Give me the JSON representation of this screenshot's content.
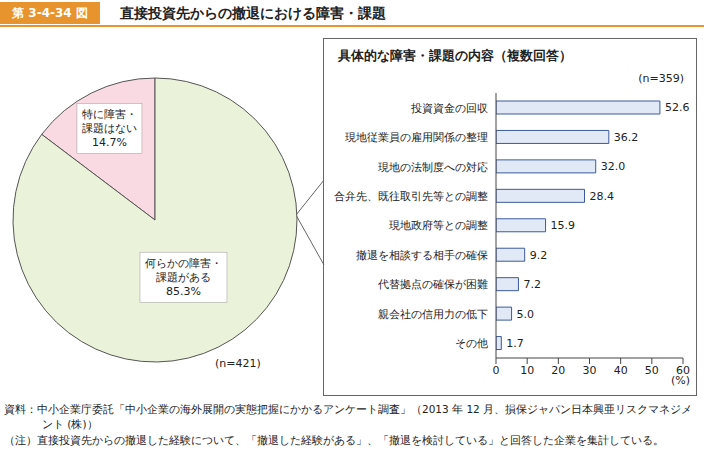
{
  "figure_number": "第 3-4-34 図",
  "title": "直接投資先からの撤退における障害・課題",
  "source": "資料：中小企業庁委託「中小企業の海外展開の実態把握にかかるアンケート調査」（2013 年 12 月、損保ジャパン日本興亜リスクマネジメント (株)）",
  "note": "（注）直接投資先からの撤退した経験について、「撤退した経験がある」、「撤退を検討している」と回答した企業を集計している。",
  "chart_data": [
    {
      "type": "pie",
      "categories": [
        "特に障害・課題はない",
        "何らかの障害・課題がある"
      ],
      "values": [
        14.7,
        85.3
      ],
      "value_labels": [
        "14.7%",
        "85.3%"
      ],
      "colors": [
        "#f9d9e2",
        "#eaf3d9"
      ],
      "data_labels": true,
      "annotations": [
        "(n=421)"
      ]
    },
    {
      "type": "bar",
      "title": "具体的な障害・課題の内容（複数回答）",
      "orientation": "horizontal",
      "categories": [
        "投資資金の回収",
        "現地従業員の雇用関係の整理",
        "現地の法制度への対応",
        "合弁先、既往取引先等との調整",
        "現地政府等との調整",
        "撤退を相談する相手の確保",
        "代替拠点の確保が困難",
        "親会社の信用力の低下",
        "その他"
      ],
      "values": [
        52.6,
        36.2,
        32.0,
        28.4,
        15.9,
        9.2,
        7.2,
        5.0,
        1.7
      ],
      "value_labels": [
        "52.6",
        "36.2",
        "32.0",
        "28.4",
        "15.9",
        "9.2",
        "7.2",
        "5.0",
        "1.7"
      ],
      "color": "#e2e9f6",
      "xlim": [
        0,
        60
      ],
      "xticks": [
        0,
        10,
        20,
        30,
        40,
        50,
        60
      ],
      "xlabel": "(%)",
      "data_labels": true,
      "annotations": [
        "(n=359)"
      ]
    }
  ]
}
